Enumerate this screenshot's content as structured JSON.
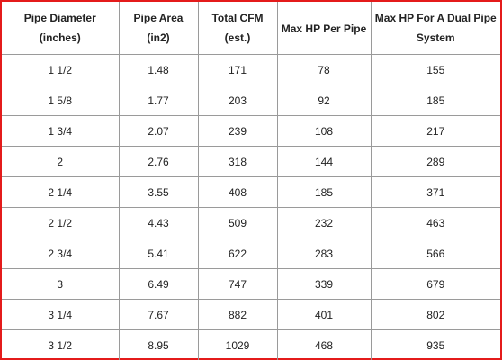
{
  "table": {
    "columns": [
      {
        "line1": "Pipe Diameter",
        "line2": "(inches)"
      },
      {
        "line1": "Pipe Area",
        "line2": "(in2)"
      },
      {
        "line1": "Total CFM",
        "line2": "(est.)"
      },
      {
        "line1": "Max HP Per Pipe",
        "line2": ""
      },
      {
        "line1": "Max HP For A Dual Pipe",
        "line2": "System"
      }
    ],
    "rows": [
      [
        "1 1/2",
        "1.48",
        "171",
        "78",
        "155"
      ],
      [
        "1 5/8",
        "1.77",
        "203",
        "92",
        "185"
      ],
      [
        "1 3/4",
        "2.07",
        "239",
        "108",
        "217"
      ],
      [
        "2",
        "2.76",
        "318",
        "144",
        "289"
      ],
      [
        "2 1/4",
        "3.55",
        "408",
        "185",
        "371"
      ],
      [
        "2 1/2",
        "4.43",
        "509",
        "232",
        "463"
      ],
      [
        "2 3/4",
        "5.41",
        "622",
        "283",
        "566"
      ],
      [
        "3",
        "6.49",
        "747",
        "339",
        "679"
      ],
      [
        "3 1/4",
        "7.67",
        "882",
        "401",
        "802"
      ],
      [
        "3 1/2",
        "8.95",
        "1029",
        "468",
        "935"
      ]
    ]
  },
  "colors": {
    "frame_border": "#e41b1b",
    "grid_line": "#9a9a9a",
    "text": "#222222",
    "background": "#ffffff"
  }
}
